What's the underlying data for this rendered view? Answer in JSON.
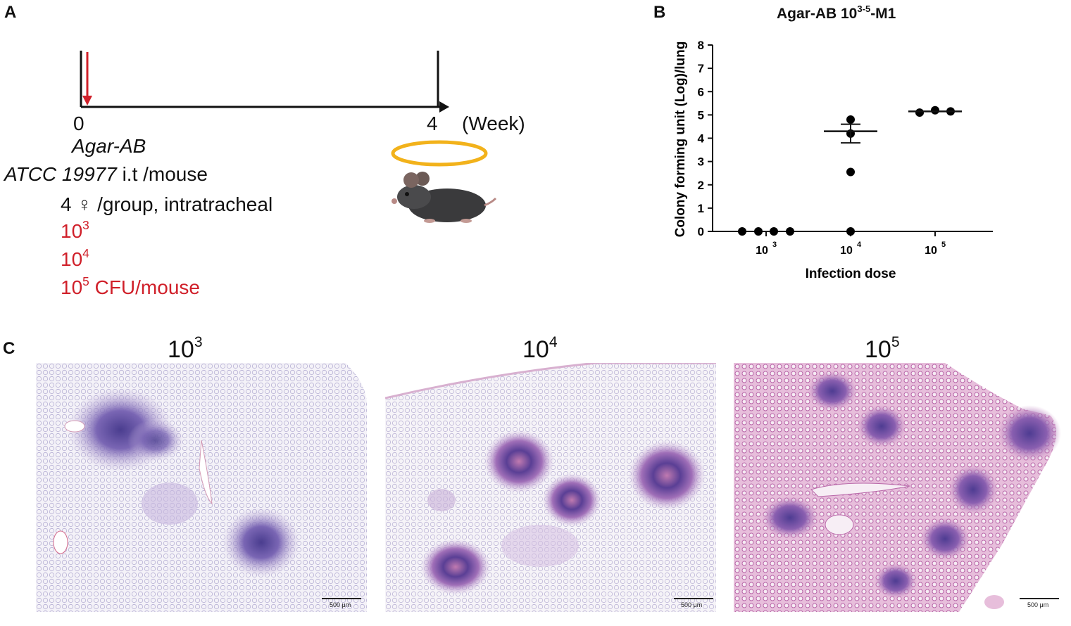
{
  "panel_a": {
    "letter": "A",
    "timeline": {
      "start": "0",
      "end": "4",
      "unit": "(Week)"
    },
    "strain_name": "Agar-AB",
    "atcc_prefix": "ATCC 19977",
    "atcc_suffix": " i.t /mouse",
    "group_line": "4 ♀ /group, intratracheal",
    "doses": [
      {
        "base": "10",
        "exp": "3",
        "suffix": ""
      },
      {
        "base": "10",
        "exp": "4",
        "suffix": ""
      },
      {
        "base": "10",
        "exp": "5",
        "suffix": " CFU/mouse"
      }
    ],
    "colors": {
      "arrow": "#d0202a",
      "halo": "#f2b21b",
      "dose_text": "#d0202a"
    }
  },
  "panel_b": {
    "letter": "B",
    "title_base": "Agar-AB 10",
    "title_sup": "3-5",
    "title_suffix": "-M1"
  },
  "chart_data": {
    "type": "scatter",
    "title": "Agar-AB 10^3-5-M1",
    "xlabel": "Infection dose",
    "ylabel": "Colony forming unit (Log)/lung",
    "ylim": [
      0,
      8
    ],
    "yticks": [
      "0",
      "1",
      "2",
      "3",
      "4",
      "5",
      "6",
      "7",
      "8"
    ],
    "categories": [
      {
        "base": "10",
        "exp": "3"
      },
      {
        "base": "10",
        "exp": "4"
      },
      {
        "base": "10",
        "exp": "5"
      }
    ],
    "groups": [
      {
        "points": [
          0,
          0,
          0,
          0
        ],
        "mean": 0,
        "sem": 0
      },
      {
        "points": [
          4.8,
          4.2,
          2.55,
          0
        ],
        "mean": 4.3,
        "sem_upper": 4.6,
        "sem_lower": 3.8
      },
      {
        "points": [
          5.1,
          5.2,
          5.15
        ],
        "mean": 5.15,
        "sem": 0.03
      }
    ],
    "grid": false,
    "point_color": "#000000"
  },
  "panel_c": {
    "letter": "C",
    "images": [
      {
        "title_base": "10",
        "title_exp": "3",
        "scale": "500 μm"
      },
      {
        "title_base": "10",
        "title_exp": "4",
        "scale": "500 μm"
      },
      {
        "title_base": "10",
        "title_exp": "5",
        "scale": "500 μm"
      }
    ]
  }
}
